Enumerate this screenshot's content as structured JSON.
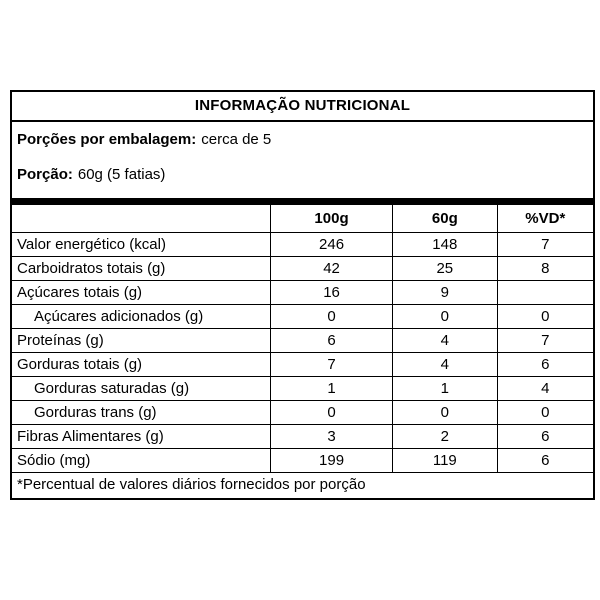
{
  "title": "INFORMAÇÃO NUTRICIONAL",
  "serving": {
    "portions_label": "Porções por embalagem:",
    "portions_value": "cerca de 5",
    "portion_label": "Porção:",
    "portion_value": "60g (5 fatias)"
  },
  "table": {
    "headers": {
      "item": "",
      "per100g": "100g",
      "per60g": "60g",
      "vd": "%VD*"
    },
    "rows": [
      {
        "label": "Valor energético (kcal)",
        "per100g": "246",
        "per60g": "148",
        "vd": "7"
      },
      {
        "label": "Carboidratos totais (g)",
        "per100g": "42",
        "per60g": "25",
        "vd": "8"
      },
      {
        "label": "Açúcares totais (g)",
        "per100g": "16",
        "per60g": "9",
        "vd": ""
      },
      {
        "label": "Açúcares adicionados (g)",
        "per100g": "0",
        "per60g": "0",
        "vd": "0"
      },
      {
        "label": "Proteínas (g)",
        "per100g": "6",
        "per60g": "4",
        "vd": "7"
      },
      {
        "label": "Gorduras totais (g)",
        "per100g": "7",
        "per60g": "4",
        "vd": "6"
      },
      {
        "label": "Gorduras saturadas (g)",
        "per100g": "1",
        "per60g": "1",
        "vd": "4"
      },
      {
        "label": "Gorduras trans (g)",
        "per100g": "0",
        "per60g": "0",
        "vd": "0"
      },
      {
        "label": "Fibras Alimentares (g)",
        "per100g": "3",
        "per60g": "2",
        "vd": "6"
      },
      {
        "label": "Sódio (mg)",
        "per100g": "199",
        "per60g": "119",
        "vd": "6"
      }
    ]
  },
  "footnote": "*Percentual de valores diários fornecidos por porção",
  "colors": {
    "border": "#000000",
    "text": "#000000",
    "background": "#ffffff"
  }
}
